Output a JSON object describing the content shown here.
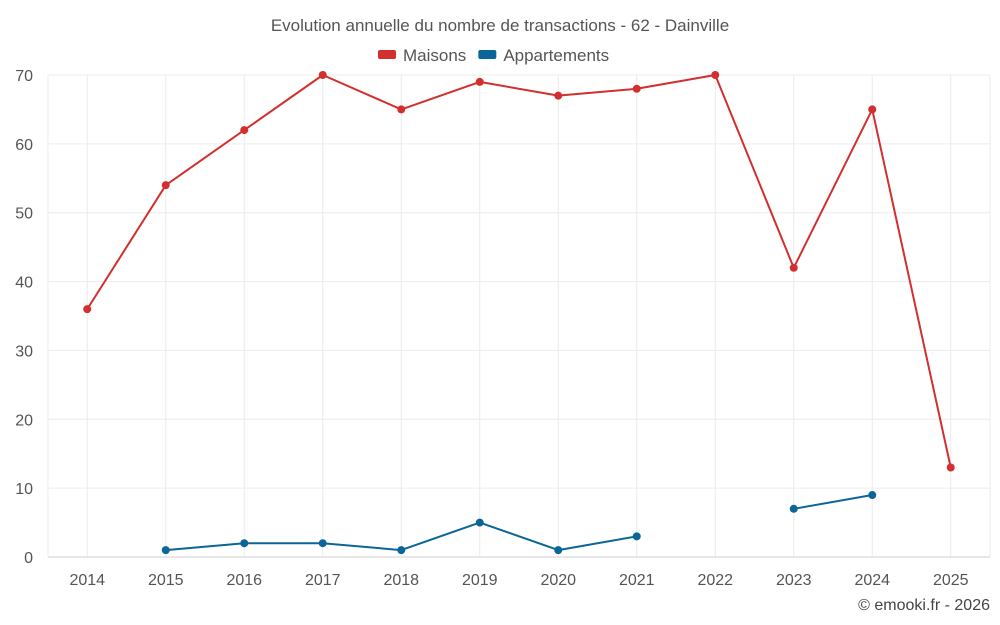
{
  "chart_data": {
    "type": "line",
    "title": "Evolution annuelle du nombre de transactions - 62 - Dainville",
    "categories": [
      "2014",
      "2015",
      "2016",
      "2017",
      "2018",
      "2019",
      "2020",
      "2021",
      "2022",
      "2023",
      "2024",
      "2025"
    ],
    "series": [
      {
        "name": "Maisons",
        "color": "#d32f2f",
        "values": [
          36,
          54,
          62,
          70,
          65,
          69,
          67,
          68,
          70,
          42,
          65,
          13
        ]
      },
      {
        "name": "Appartements",
        "color": "#0a6698",
        "values": [
          null,
          1,
          2,
          2,
          1,
          5,
          1,
          3,
          null,
          7,
          9,
          null
        ]
      }
    ],
    "ylim": [
      0,
      70
    ],
    "yticks": [
      0,
      10,
      20,
      30,
      40,
      50,
      60,
      70
    ],
    "xlabel": "",
    "ylabel": "",
    "legend": "top-center",
    "grid": true
  },
  "credit": "© emooki.fr - 2026"
}
